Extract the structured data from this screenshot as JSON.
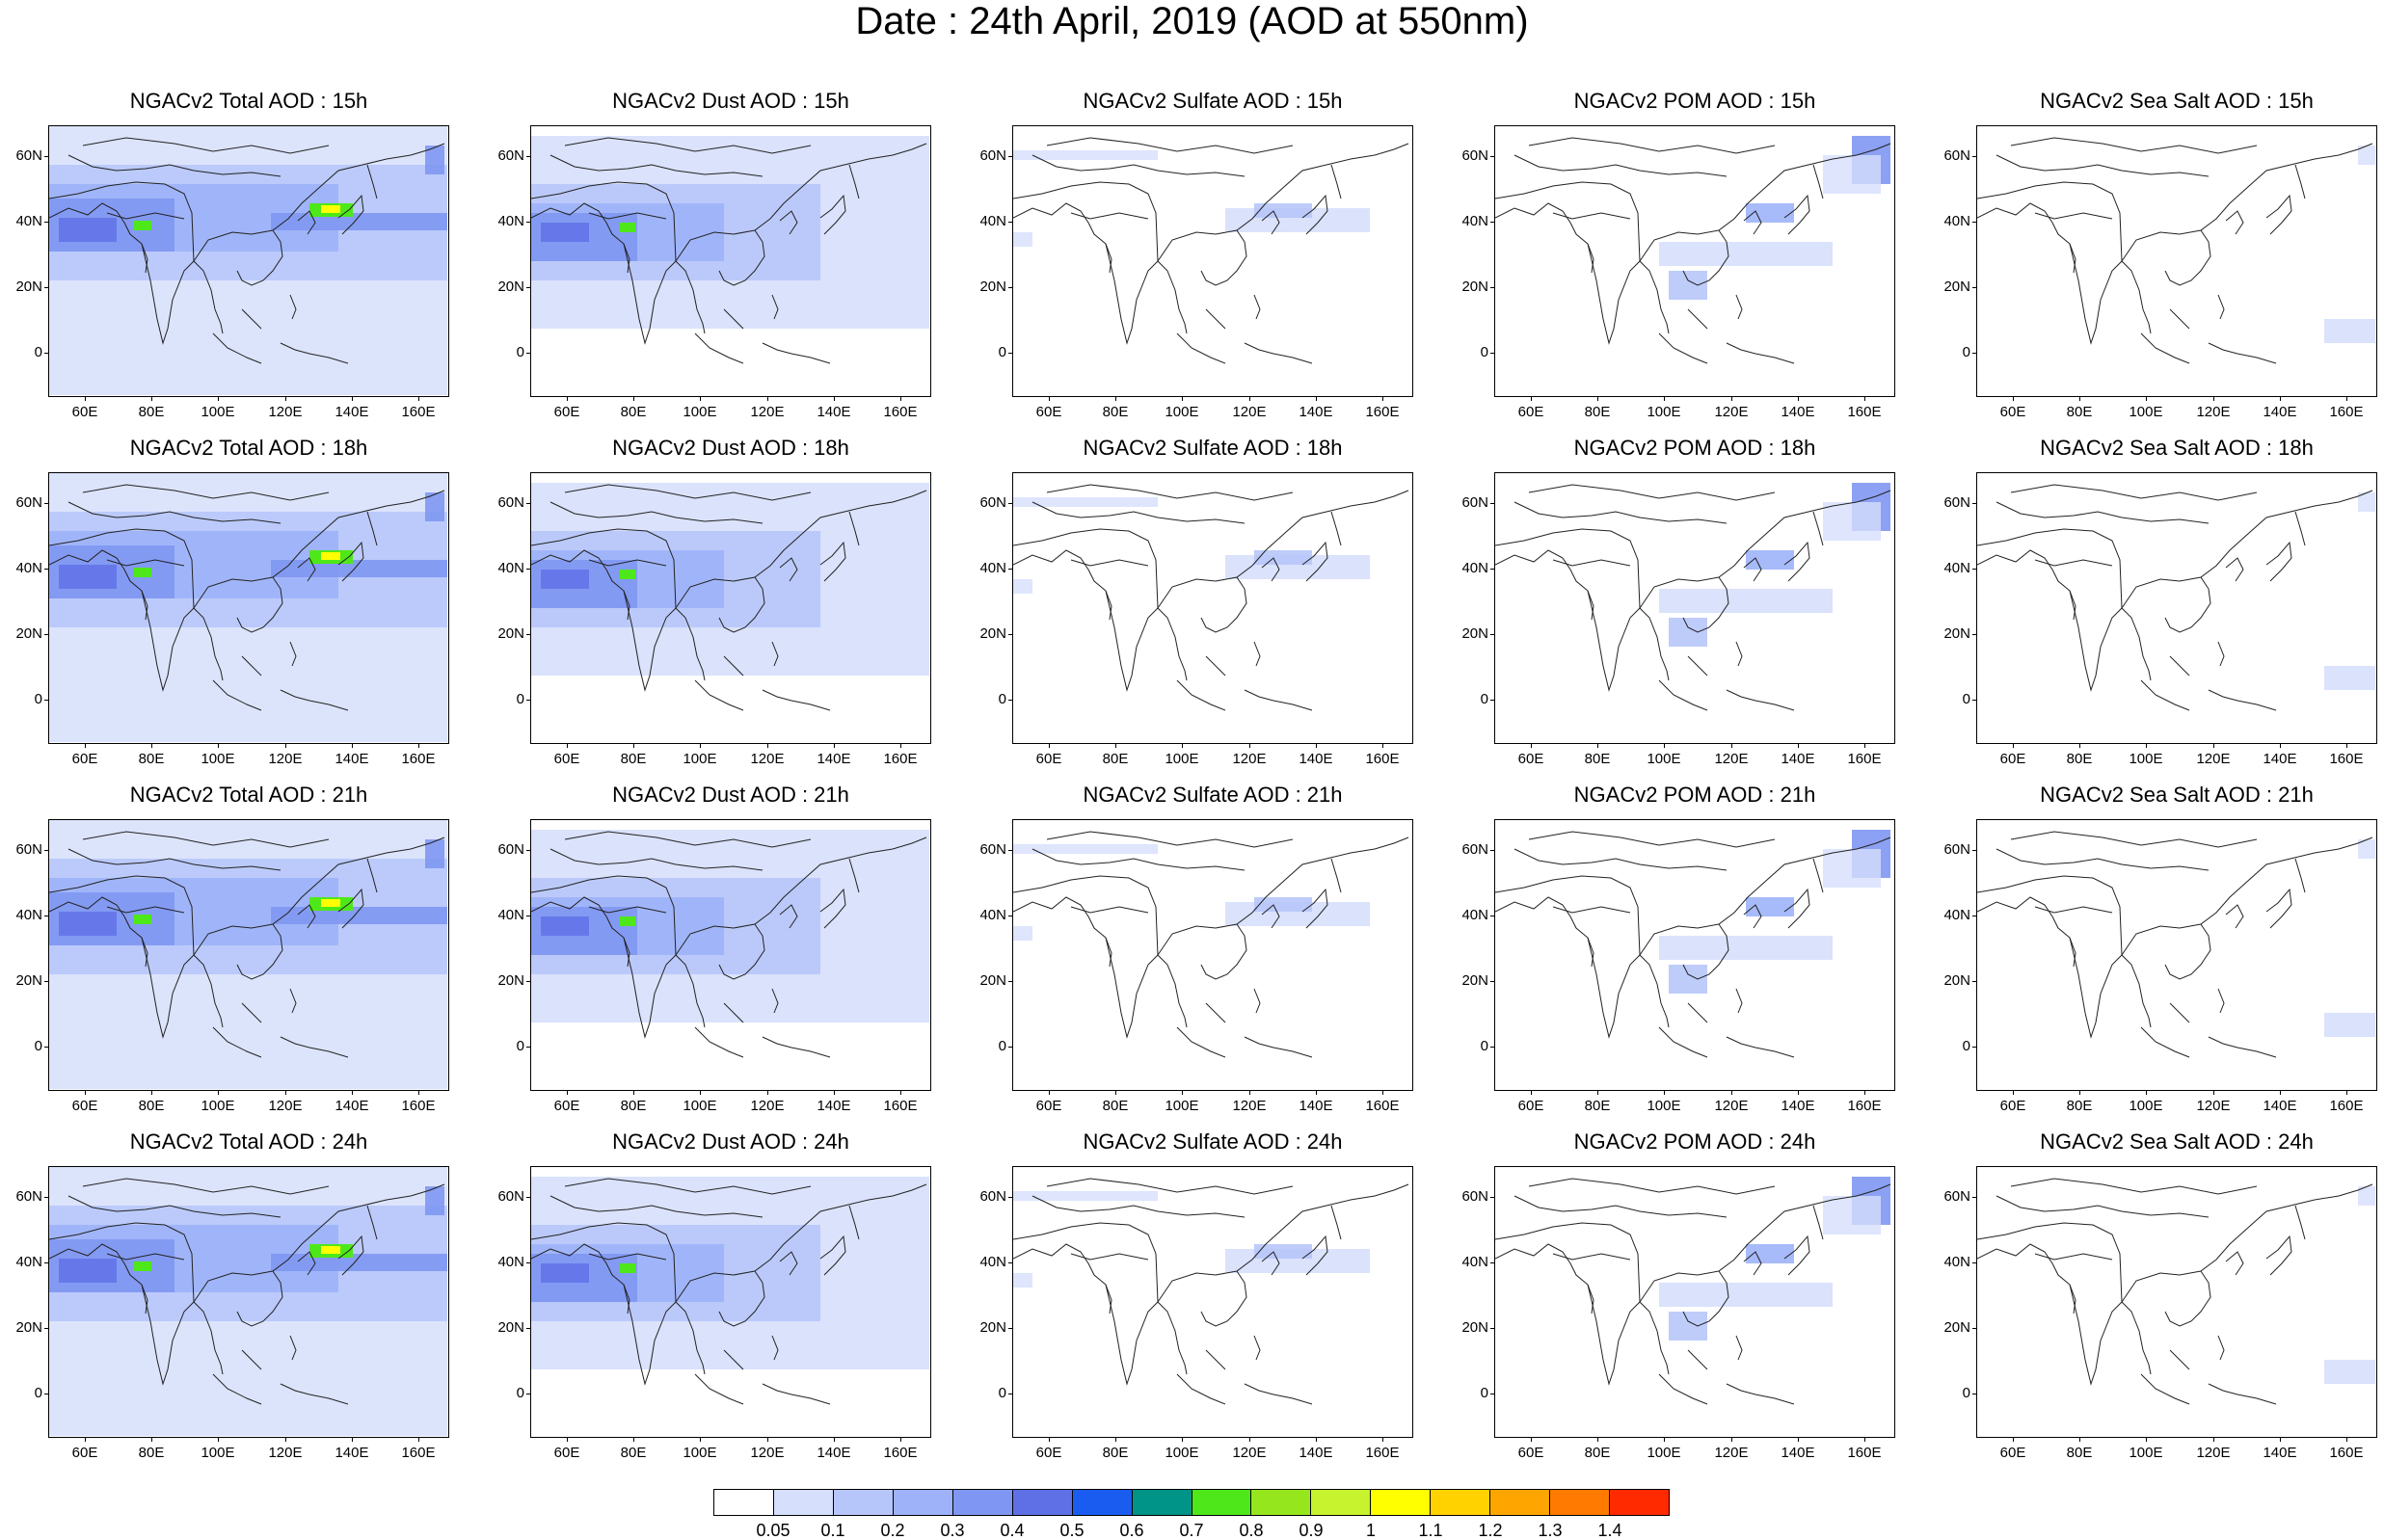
{
  "title": "Date : 24th April, 2019 (AOD at 550nm)",
  "lat_ticks": [
    "60N",
    "40N",
    "20N",
    "0"
  ],
  "lon_ticks": [
    "60E",
    "80E",
    "100E",
    "120E",
    "140E",
    "160E"
  ],
  "panels": [
    {
      "title": "NGACv2 Total AOD : 15h",
      "species": "total",
      "hour": "15h"
    },
    {
      "title": "NGACv2 Dust AOD : 15h",
      "species": "dust",
      "hour": "15h"
    },
    {
      "title": "NGACv2 Sulfate AOD : 15h",
      "species": "sulfate",
      "hour": "15h"
    },
    {
      "title": "NGACv2 POM AOD : 15h",
      "species": "pom",
      "hour": "15h"
    },
    {
      "title": "NGACv2 Sea Salt AOD : 15h",
      "species": "seasalt",
      "hour": "15h"
    },
    {
      "title": "NGACv2 Total AOD : 18h",
      "species": "total",
      "hour": "18h"
    },
    {
      "title": "NGACv2 Dust AOD : 18h",
      "species": "dust",
      "hour": "18h"
    },
    {
      "title": "NGACv2 Sulfate AOD : 18h",
      "species": "sulfate",
      "hour": "18h"
    },
    {
      "title": "NGACv2 POM AOD : 18h",
      "species": "pom",
      "hour": "18h"
    },
    {
      "title": "NGACv2 Sea Salt AOD : 18h",
      "species": "seasalt",
      "hour": "18h"
    },
    {
      "title": "NGACv2 Total AOD : 21h",
      "species": "total",
      "hour": "21h"
    },
    {
      "title": "NGACv2 Dust AOD : 21h",
      "species": "dust",
      "hour": "21h"
    },
    {
      "title": "NGACv2 Sulfate AOD : 21h",
      "species": "sulfate",
      "hour": "21h"
    },
    {
      "title": "NGACv2 POM AOD : 21h",
      "species": "pom",
      "hour": "21h"
    },
    {
      "title": "NGACv2 Sea Salt AOD : 21h",
      "species": "seasalt",
      "hour": "21h"
    },
    {
      "title": "NGACv2 Total AOD : 24h",
      "species": "total",
      "hour": "24h"
    },
    {
      "title": "NGACv2 Dust AOD : 24h",
      "species": "dust",
      "hour": "24h"
    },
    {
      "title": "NGACv2 Sulfate AOD : 24h",
      "species": "sulfate",
      "hour": "24h"
    },
    {
      "title": "NGACv2 POM AOD : 24h",
      "species": "pom",
      "hour": "24h"
    },
    {
      "title": "NGACv2 Sea Salt  AOD : 24h",
      "species": "seasalt",
      "hour": "24h"
    }
  ],
  "colorbar": {
    "labels": [
      "0.05",
      "0.1",
      "0.2",
      "0.3",
      "0.4",
      "0.5",
      "0.6",
      "0.7",
      "0.8",
      "0.9",
      "1",
      "1.1",
      "1.2",
      "1.3",
      "1.4"
    ],
    "colors": [
      "#ffffff",
      "#d6dffc",
      "#b7c6fa",
      "#9db2f8",
      "#7f97f2",
      "#5f6fe6",
      "#1a5cf0",
      "#009488",
      "#4ee81a",
      "#96e61e",
      "#c6f22e",
      "#ffff00",
      "#ffd200",
      "#ffa500",
      "#ff7a00",
      "#ff2a00"
    ]
  }
}
